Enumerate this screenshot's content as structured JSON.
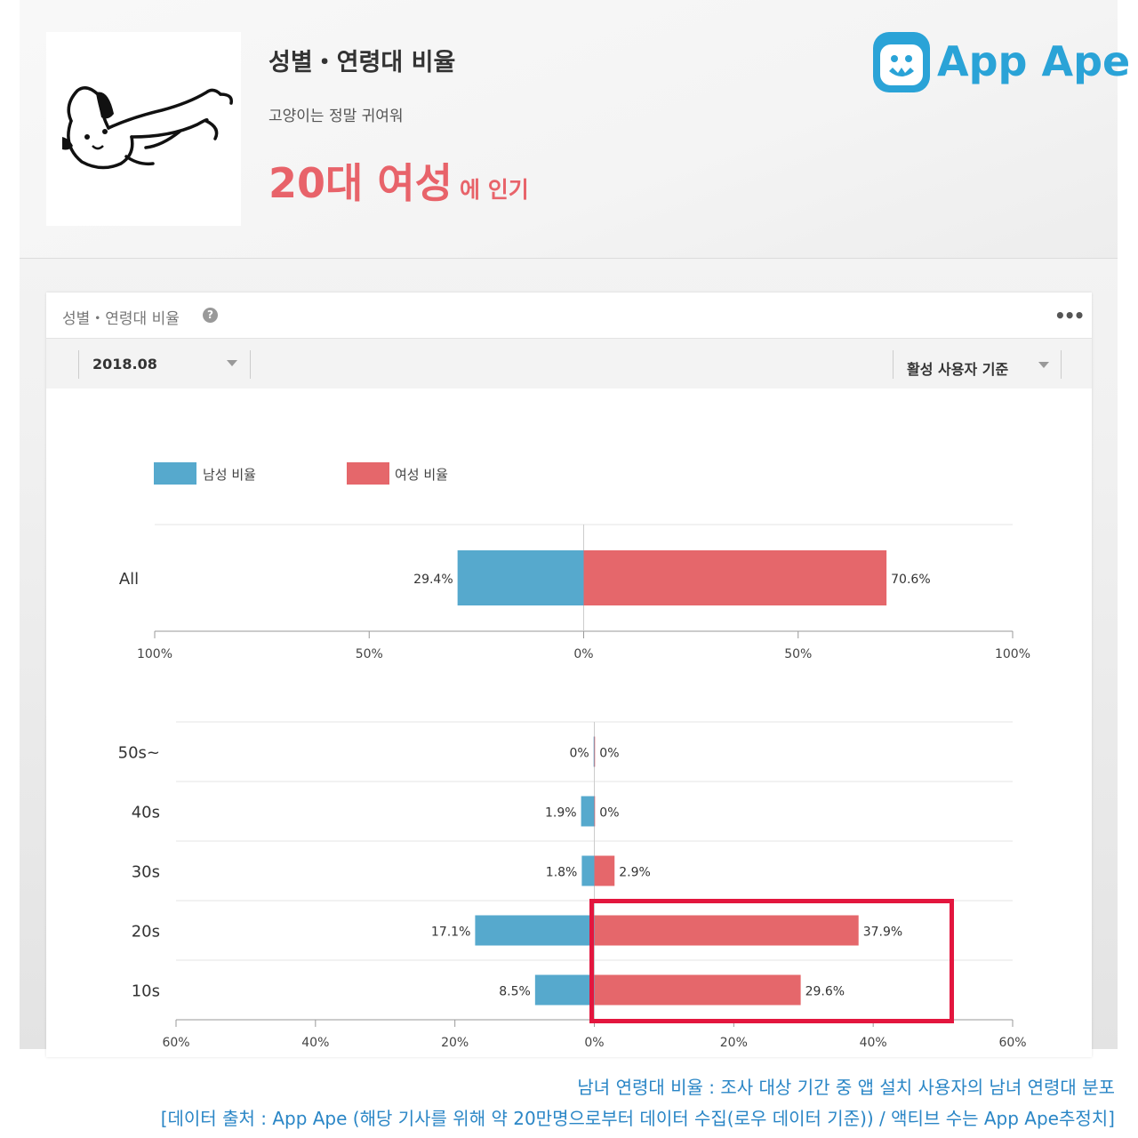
{
  "header": {
    "title": "성별・연령대 비율",
    "app_name": "고양이는 정말 귀여워",
    "popular_group": "20대 여성",
    "popular_suffix": "에 인기",
    "brand": "App Ape"
  },
  "card": {
    "title": "성별・연령대 비율",
    "help_icon": "question-icon",
    "more_icon": "more-icon",
    "date_select": "2018.08",
    "basis_select": "활성 사용자 기준"
  },
  "colors": {
    "male": "#56a9cd",
    "female": "#e5676b",
    "highlight": "#e3163e",
    "accent": "#e8636a",
    "brand": "#2aa3d7"
  },
  "chart_data": [
    {
      "type": "bar",
      "orientation": "horizontal-diverging",
      "legend": [
        "남성 비율",
        "여성 비율"
      ],
      "categories": [
        "All"
      ],
      "series": [
        {
          "name": "남성 비율",
          "values": [
            29.4
          ],
          "labels": [
            "29.4%"
          ]
        },
        {
          "name": "여성 비율",
          "values": [
            70.6
          ],
          "labels": [
            "70.6%"
          ]
        }
      ],
      "xlim": [
        -100,
        100
      ],
      "ticks": [
        "100%",
        "50%",
        "0%",
        "50%",
        "100%"
      ]
    },
    {
      "type": "bar",
      "orientation": "horizontal-diverging",
      "categories": [
        "50s~",
        "40s",
        "30s",
        "20s",
        "10s"
      ],
      "series": [
        {
          "name": "남성 비율",
          "values": [
            0,
            1.9,
            1.8,
            17.1,
            8.5
          ],
          "labels": [
            "0%",
            "1.9%",
            "1.8%",
            "17.1%",
            "8.5%"
          ]
        },
        {
          "name": "여성 비율",
          "values": [
            0,
            0,
            2.9,
            37.9,
            29.6
          ],
          "labels": [
            "0%",
            "0%",
            "2.9%",
            "37.9%",
            "29.6%"
          ]
        }
      ],
      "xlim": [
        -60,
        60
      ],
      "ticks": [
        "60%",
        "40%",
        "20%",
        "0%",
        "20%",
        "40%",
        "60%"
      ]
    }
  ],
  "footnotes": [
    "남녀 연령대 비율 : 조사 대상 기간 중 앱 설치 사용자의 남녀 연령대 분포",
    "[데이터 출처 : App Ape (해당 기사를 위해 약 20만명으로부터 데이터 수집(로우 데이터 기준)) / 액티브 수는 App Ape추정치]"
  ]
}
